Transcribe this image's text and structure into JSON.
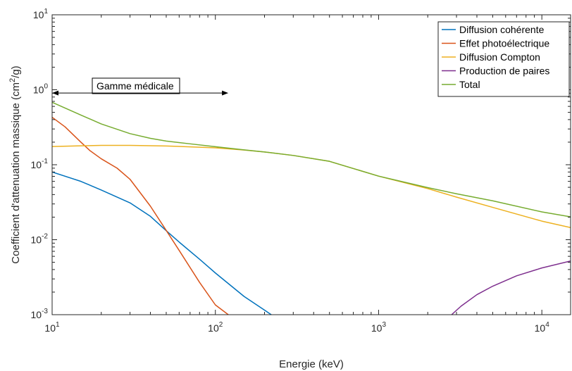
{
  "chart_data": {
    "type": "line",
    "title": "",
    "xlabel": "Energie (keV)",
    "ylabel": "Coefficient d'attenuation massique (cm",
    "ylabel_sup": "2",
    "ylabel_tail": "/g)",
    "xscale": "log",
    "yscale": "log",
    "xlim": [
      10,
      15000
    ],
    "ylim": [
      0.001,
      10
    ],
    "grid": false,
    "legend_position": "top-right",
    "x_ticks": [
      {
        "base": "10",
        "exp": "1",
        "value": 10
      },
      {
        "base": "10",
        "exp": "2",
        "value": 100
      },
      {
        "base": "10",
        "exp": "3",
        "value": 1000
      },
      {
        "base": "10",
        "exp": "4",
        "value": 10000
      }
    ],
    "y_ticks": [
      {
        "base": "10",
        "exp": "-3",
        "value": 0.001
      },
      {
        "base": "10",
        "exp": "-2",
        "value": 0.01
      },
      {
        "base": "10",
        "exp": "-1",
        "value": 0.1
      },
      {
        "base": "10",
        "exp": "0",
        "value": 1
      },
      {
        "base": "10",
        "exp": "1",
        "value": 10
      }
    ],
    "annotation": {
      "text": "Gamme médicale",
      "x_start": 10,
      "x_end": 120,
      "y": 1.1
    },
    "series": [
      {
        "name": "Diffusion cohérente",
        "color": "#0072BD",
        "points": [
          [
            10,
            0.08
          ],
          [
            15,
            0.06
          ],
          [
            20,
            0.046
          ],
          [
            30,
            0.031
          ],
          [
            40,
            0.0205
          ],
          [
            50,
            0.0132
          ],
          [
            60,
            0.0093
          ],
          [
            80,
            0.0055
          ],
          [
            100,
            0.0036
          ],
          [
            150,
            0.00175
          ],
          [
            200,
            0.00115
          ],
          [
            220,
            0.001
          ]
        ]
      },
      {
        "name": "Effet photoélectrique",
        "color": "#D95319",
        "points": [
          [
            10,
            0.43
          ],
          [
            12,
            0.32
          ],
          [
            15,
            0.2
          ],
          [
            17,
            0.155
          ],
          [
            20,
            0.12
          ],
          [
            25,
            0.09
          ],
          [
            30,
            0.064
          ],
          [
            40,
            0.028
          ],
          [
            50,
            0.0133
          ],
          [
            60,
            0.0072
          ],
          [
            80,
            0.0027
          ],
          [
            100,
            0.00135
          ],
          [
            120,
            0.001
          ]
        ]
      },
      {
        "name": "Diffusion Compton",
        "color": "#EDB120",
        "points": [
          [
            10,
            0.175
          ],
          [
            15,
            0.179
          ],
          [
            20,
            0.181
          ],
          [
            30,
            0.181
          ],
          [
            50,
            0.178
          ],
          [
            100,
            0.168
          ],
          [
            150,
            0.157
          ],
          [
            200,
            0.148
          ],
          [
            300,
            0.133
          ],
          [
            500,
            0.111
          ],
          [
            1000,
            0.0705
          ],
          [
            2000,
            0.048
          ],
          [
            3000,
            0.037
          ],
          [
            5000,
            0.027
          ],
          [
            10000,
            0.0177
          ],
          [
            15000,
            0.0145
          ]
        ]
      },
      {
        "name": "Production de paires",
        "color": "#7E2F8E",
        "points": [
          [
            2800,
            0.001
          ],
          [
            3200,
            0.0013
          ],
          [
            4000,
            0.00185
          ],
          [
            5000,
            0.0024
          ],
          [
            7000,
            0.0033
          ],
          [
            10000,
            0.0042
          ],
          [
            15000,
            0.0052
          ]
        ]
      },
      {
        "name": "Total",
        "color": "#77AC30",
        "points": [
          [
            10,
            0.68
          ],
          [
            15,
            0.46
          ],
          [
            20,
            0.35
          ],
          [
            30,
            0.26
          ],
          [
            40,
            0.225
          ],
          [
            50,
            0.207
          ],
          [
            70,
            0.19
          ],
          [
            100,
            0.174
          ],
          [
            150,
            0.158
          ],
          [
            200,
            0.148
          ],
          [
            300,
            0.133
          ],
          [
            500,
            0.111
          ],
          [
            1000,
            0.0705
          ],
          [
            2000,
            0.0495
          ],
          [
            3000,
            0.041
          ],
          [
            5000,
            0.033
          ],
          [
            10000,
            0.0235
          ],
          [
            15000,
            0.0202
          ]
        ]
      }
    ]
  }
}
